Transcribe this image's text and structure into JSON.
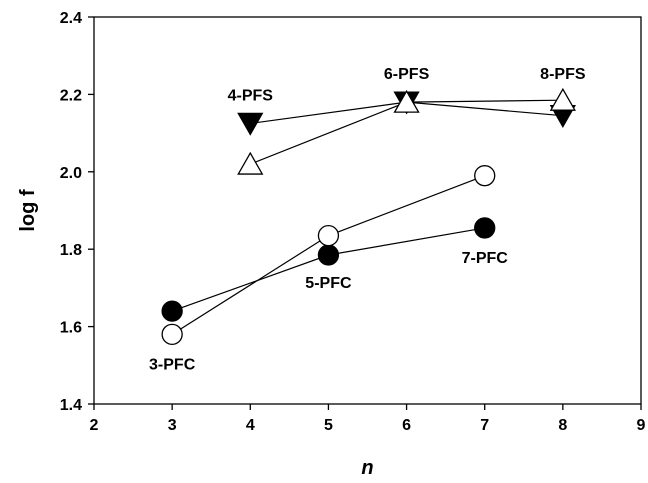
{
  "chart_data": {
    "type": "scatter",
    "xlabel": "n",
    "ylabel": "log f",
    "xlim": [
      2,
      9
    ],
    "ylim": [
      1.4,
      2.4
    ],
    "xticks": [
      "2",
      "3",
      "4",
      "5",
      "6",
      "7",
      "8",
      "9"
    ],
    "yticks": [
      "1.4",
      "1.6",
      "1.8",
      "2.0",
      "2.2",
      "2.4"
    ],
    "grid": false,
    "series": [
      {
        "marker": "triangle-down",
        "fill": "#000000",
        "points": [
          {
            "x": 4,
            "y": 2.125
          },
          {
            "x": 6,
            "y": 2.18
          },
          {
            "x": 8,
            "y": 2.145
          }
        ]
      },
      {
        "marker": "triangle-up",
        "fill": "#ffffff",
        "points": [
          {
            "x": 4,
            "y": 2.02
          },
          {
            "x": 6,
            "y": 2.18
          },
          {
            "x": 8,
            "y": 2.185
          }
        ]
      },
      {
        "marker": "circle",
        "fill": "#000000",
        "points": [
          {
            "x": 3,
            "y": 1.64
          },
          {
            "x": 5,
            "y": 1.785
          },
          {
            "x": 7,
            "y": 1.855
          }
        ]
      },
      {
        "marker": "circle",
        "fill": "#ffffff",
        "points": [
          {
            "x": 3,
            "y": 1.58
          },
          {
            "x": 5,
            "y": 1.835
          },
          {
            "x": 7,
            "y": 1.99
          }
        ]
      }
    ],
    "annotations": [
      {
        "text": "4-PFS",
        "x": 4,
        "y": 2.2
      },
      {
        "text": "6-PFS",
        "x": 6,
        "y": 2.255
      },
      {
        "text": "8-PFS",
        "x": 8,
        "y": 2.255
      },
      {
        "text": "5-PFC",
        "x": 5,
        "y": 1.715
      },
      {
        "text": "7-PFC",
        "x": 7,
        "y": 1.78
      },
      {
        "text": "3-PFC",
        "x": 3,
        "y": 1.505
      }
    ]
  }
}
